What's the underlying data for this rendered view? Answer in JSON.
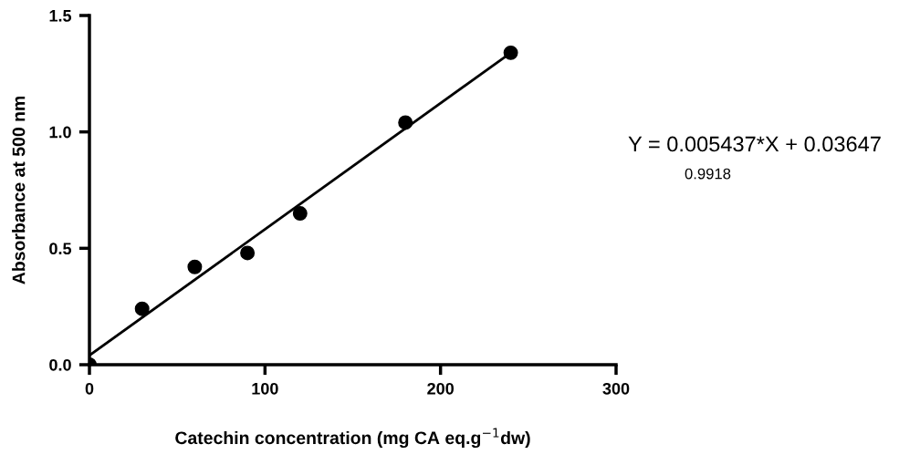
{
  "chart_data": {
    "type": "scatter",
    "xlabel": "Catechin concentration (mg CA eq.g$^{−1}$dw)",
    "ylabel": "Absorbance at 500 nm",
    "annotations": [
      "Y = 0.005437*X + 0.03647",
      "0.9918"
    ],
    "series": [
      {
        "color": "#000000",
        "marker": "circle",
        "x": [
          0,
          30,
          60,
          90,
          120,
          180,
          240
        ],
        "values": [
          0.0,
          0.24,
          0.42,
          0.48,
          0.65,
          1.04,
          1.34
        ]
      },
      {
        "type": "line",
        "color": "#000000",
        "line_style": "solid",
        "x": [
          0,
          240
        ],
        "values": [
          0.04,
          1.34
        ]
      }
    ],
    "xlim": [
      0,
      300
    ],
    "xticks": [
      0,
      100,
      200,
      300
    ],
    "ylim": [
      0,
      1.5
    ],
    "yticks": [
      {
        "value": 0,
        "label": "0.0"
      },
      {
        "value": 0.5,
        "label": "0.5"
      },
      {
        "value": 1.0,
        "label": "1.0"
      },
      {
        "value": 1.5,
        "label": "1.5"
      }
    ],
    "grid": false,
    "legend": false
  }
}
